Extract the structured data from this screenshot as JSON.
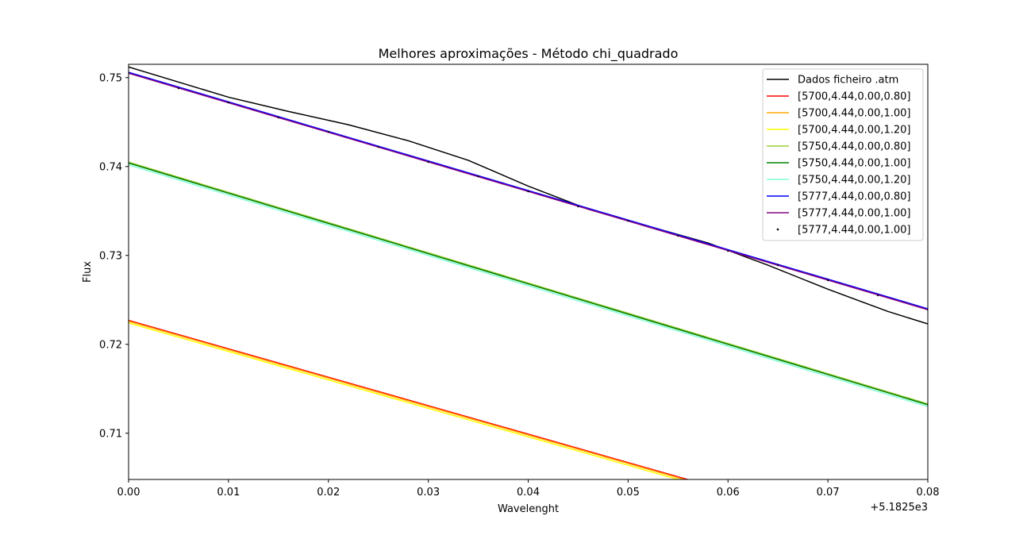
{
  "chart_data": {
    "type": "line",
    "title": "Melhores aproximações - Método chi_quadrado",
    "xlabel": "Wavelenght",
    "ylabel": "Flux",
    "x_offset_label": "+5.1825e3",
    "xlim": [
      0.0,
      0.08
    ],
    "ylim": [
      0.7048,
      0.7515
    ],
    "x_ticks": [
      0.0,
      0.01,
      0.02,
      0.03,
      0.04,
      0.05,
      0.06,
      0.07,
      0.08
    ],
    "x_tick_labels": [
      "0.00",
      "0.01",
      "0.02",
      "0.03",
      "0.04",
      "0.05",
      "0.06",
      "0.07",
      "0.08"
    ],
    "y_ticks": [
      0.71,
      0.72,
      0.73,
      0.74,
      0.75
    ],
    "y_tick_labels": [
      "0.71",
      "0.72",
      "0.73",
      "0.74",
      "0.75"
    ],
    "grid": false,
    "legend_position": "upper right",
    "series": [
      {
        "name": "Dados ficheiro .atm",
        "color": "#000000",
        "style": "line",
        "x": [
          0.0,
          0.01,
          0.016,
          0.022,
          0.028,
          0.034,
          0.04,
          0.046,
          0.052,
          0.058,
          0.064,
          0.07,
          0.076,
          0.08
        ],
        "y": [
          0.7512,
          0.7478,
          0.7462,
          0.7447,
          0.7429,
          0.7407,
          0.7378,
          0.7352,
          0.7333,
          0.7314,
          0.7289,
          0.7262,
          0.7237,
          0.7223
        ]
      },
      {
        "name": "[5700,4.44,0.00,0.80]",
        "color": "#ff0000",
        "style": "line",
        "x": [
          0.0,
          0.08
        ],
        "y": [
          0.7227,
          0.6971
        ]
      },
      {
        "name": "[5700,4.44,0.00,1.00]",
        "color": "#ffa500",
        "style": "line",
        "x": [
          0.0,
          0.08
        ],
        "y": [
          0.7226,
          0.697
        ]
      },
      {
        "name": "[5700,4.44,0.00,1.20]",
        "color": "#ffff00",
        "style": "line",
        "x": [
          0.0,
          0.08
        ],
        "y": [
          0.7224,
          0.6968
        ]
      },
      {
        "name": "[5750,4.44,0.00,0.80]",
        "color": "#9acd32",
        "style": "line",
        "x": [
          0.0,
          0.08
        ],
        "y": [
          0.7405,
          0.7133
        ]
      },
      {
        "name": "[5750,4.44,0.00,1.00]",
        "color": "#008000",
        "style": "line",
        "x": [
          0.0,
          0.08
        ],
        "y": [
          0.7404,
          0.7132
        ]
      },
      {
        "name": "[5750,4.44,0.00,1.20]",
        "color": "#7fffd4",
        "style": "line",
        "x": [
          0.0,
          0.08
        ],
        "y": [
          0.7402,
          0.713
        ]
      },
      {
        "name": "[5777,4.44,0.00,0.80]",
        "color": "#0000ff",
        "style": "line",
        "x": [
          0.0,
          0.08
        ],
        "y": [
          0.7506,
          0.724
        ]
      },
      {
        "name": "[5777,4.44,0.00,1.00]",
        "color": "#800080",
        "style": "line",
        "x": [
          0.0,
          0.08
        ],
        "y": [
          0.7505,
          0.7239
        ]
      },
      {
        "name": "[5777,4.44,0.00,1.00]",
        "color": "#000000",
        "style": "points",
        "x": [
          0.0,
          0.005,
          0.01,
          0.015,
          0.02,
          0.025,
          0.03,
          0.035,
          0.04,
          0.045,
          0.05,
          0.055,
          0.06,
          0.065,
          0.07,
          0.075,
          0.08
        ],
        "y": [
          0.7505,
          0.7488,
          0.7472,
          0.7455,
          0.7439,
          0.7422,
          0.7405,
          0.7389,
          0.7372,
          0.7355,
          0.7339,
          0.7322,
          0.7305,
          0.7289,
          0.7272,
          0.7255,
          0.7239
        ]
      }
    ]
  }
}
